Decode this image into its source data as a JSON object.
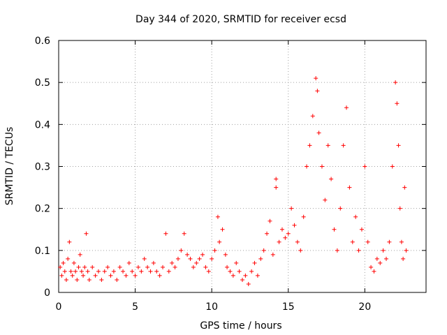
{
  "chart_data": {
    "type": "scatter",
    "title": "Day 344 of 2020, SRMTID for receiver ecsd",
    "xlabel": "GPS time / hours",
    "ylabel": "SRMTID / TECUs",
    "xlim": [
      0,
      24
    ],
    "ylim": [
      0,
      0.6
    ],
    "xticks": [
      "0",
      "5",
      "10",
      "15",
      "20"
    ],
    "yticks": [
      "0",
      "0.1",
      "0.2",
      "0.3",
      "0.4",
      "0.5",
      "0.6"
    ],
    "grid": true,
    "marker": "+",
    "color": "#ff0000",
    "series": [
      {
        "name": "SRMTID",
        "points": [
          [
            0.1,
            0.06
          ],
          [
            0.2,
            0.04
          ],
          [
            0.3,
            0.07
          ],
          [
            0.4,
            0.05
          ],
          [
            0.5,
            0.03
          ],
          [
            0.6,
            0.08
          ],
          [
            0.7,
            0.12
          ],
          [
            0.8,
            0.05
          ],
          [
            0.9,
            0.04
          ],
          [
            1.0,
            0.07
          ],
          [
            1.1,
            0.05
          ],
          [
            1.2,
            0.03
          ],
          [
            1.3,
            0.06
          ],
          [
            1.4,
            0.09
          ],
          [
            1.5,
            0.05
          ],
          [
            1.6,
            0.04
          ],
          [
            1.7,
            0.06
          ],
          [
            1.8,
            0.14
          ],
          [
            1.9,
            0.05
          ],
          [
            2.0,
            0.03
          ],
          [
            2.2,
            0.06
          ],
          [
            2.4,
            0.04
          ],
          [
            2.6,
            0.05
          ],
          [
            2.8,
            0.03
          ],
          [
            3.0,
            0.05
          ],
          [
            3.2,
            0.06
          ],
          [
            3.4,
            0.04
          ],
          [
            3.6,
            0.05
          ],
          [
            3.8,
            0.03
          ],
          [
            4.0,
            0.06
          ],
          [
            4.2,
            0.05
          ],
          [
            4.4,
            0.04
          ],
          [
            4.6,
            0.07
          ],
          [
            4.8,
            0.05
          ],
          [
            5.0,
            0.04
          ],
          [
            5.2,
            0.06
          ],
          [
            5.4,
            0.05
          ],
          [
            5.6,
            0.08
          ],
          [
            5.8,
            0.06
          ],
          [
            6.0,
            0.05
          ],
          [
            6.2,
            0.07
          ],
          [
            6.4,
            0.05
          ],
          [
            6.6,
            0.04
          ],
          [
            6.8,
            0.06
          ],
          [
            7.0,
            0.14
          ],
          [
            7.2,
            0.05
          ],
          [
            7.4,
            0.07
          ],
          [
            7.6,
            0.06
          ],
          [
            7.8,
            0.08
          ],
          [
            8.0,
            0.1
          ],
          [
            8.2,
            0.14
          ],
          [
            8.4,
            0.09
          ],
          [
            8.6,
            0.08
          ],
          [
            8.8,
            0.06
          ],
          [
            9.0,
            0.07
          ],
          [
            9.2,
            0.08
          ],
          [
            9.4,
            0.09
          ],
          [
            9.6,
            0.06
          ],
          [
            9.8,
            0.05
          ],
          [
            10.0,
            0.08
          ],
          [
            10.2,
            0.1
          ],
          [
            10.4,
            0.18
          ],
          [
            10.5,
            0.12
          ],
          [
            10.7,
            0.15
          ],
          [
            10.9,
            0.09
          ],
          [
            11.0,
            0.06
          ],
          [
            11.2,
            0.05
          ],
          [
            11.4,
            0.04
          ],
          [
            11.6,
            0.07
          ],
          [
            11.8,
            0.05
          ],
          [
            12.0,
            0.03
          ],
          [
            12.2,
            0.04
          ],
          [
            12.4,
            0.02
          ],
          [
            12.6,
            0.05
          ],
          [
            12.8,
            0.07
          ],
          [
            13.0,
            0.04
          ],
          [
            13.2,
            0.08
          ],
          [
            13.4,
            0.1
          ],
          [
            13.6,
            0.14
          ],
          [
            13.8,
            0.17
          ],
          [
            14.0,
            0.09
          ],
          [
            14.2,
            0.27
          ],
          [
            14.2,
            0.25
          ],
          [
            14.4,
            0.12
          ],
          [
            14.6,
            0.15
          ],
          [
            14.8,
            0.13
          ],
          [
            15.0,
            0.14
          ],
          [
            15.2,
            0.2
          ],
          [
            15.4,
            0.16
          ],
          [
            15.6,
            0.12
          ],
          [
            15.8,
            0.1
          ],
          [
            16.0,
            0.18
          ],
          [
            16.2,
            0.3
          ],
          [
            16.4,
            0.35
          ],
          [
            16.6,
            0.42
          ],
          [
            16.8,
            0.51
          ],
          [
            16.9,
            0.48
          ],
          [
            17.0,
            0.38
          ],
          [
            17.2,
            0.3
          ],
          [
            17.4,
            0.22
          ],
          [
            17.6,
            0.35
          ],
          [
            17.8,
            0.27
          ],
          [
            18.0,
            0.15
          ],
          [
            18.2,
            0.1
          ],
          [
            18.4,
            0.2
          ],
          [
            18.6,
            0.35
          ],
          [
            18.8,
            0.44
          ],
          [
            19.0,
            0.25
          ],
          [
            19.2,
            0.12
          ],
          [
            19.4,
            0.18
          ],
          [
            19.6,
            0.1
          ],
          [
            19.8,
            0.15
          ],
          [
            20.0,
            0.3
          ],
          [
            20.2,
            0.12
          ],
          [
            20.4,
            0.06
          ],
          [
            20.6,
            0.05
          ],
          [
            20.8,
            0.08
          ],
          [
            21.0,
            0.07
          ],
          [
            21.2,
            0.1
          ],
          [
            21.4,
            0.08
          ],
          [
            21.6,
            0.12
          ],
          [
            21.8,
            0.3
          ],
          [
            22.0,
            0.5
          ],
          [
            22.1,
            0.45
          ],
          [
            22.2,
            0.35
          ],
          [
            22.3,
            0.2
          ],
          [
            22.4,
            0.12
          ],
          [
            22.5,
            0.08
          ],
          [
            22.6,
            0.25
          ],
          [
            22.7,
            0.1
          ]
        ]
      }
    ]
  }
}
